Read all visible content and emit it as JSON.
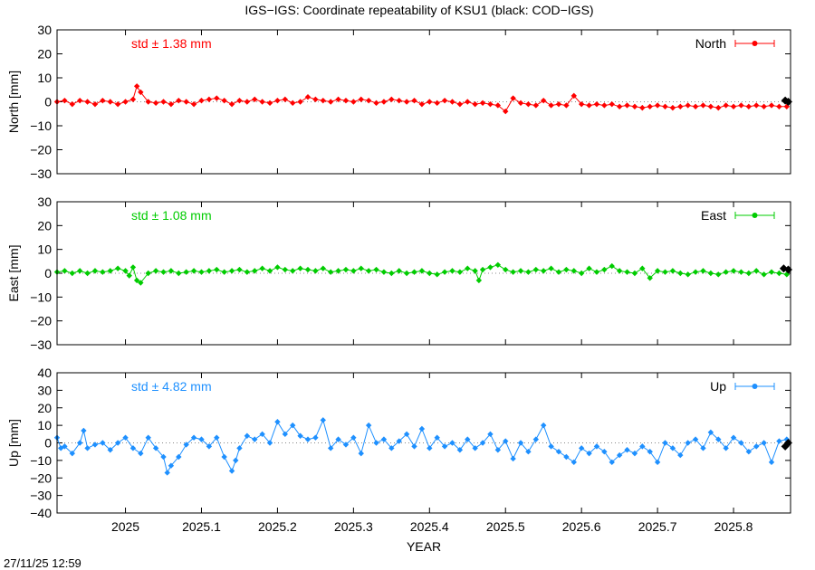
{
  "page": {
    "title": "IGS−IGS: Coordinate repeatability of KSU1 (black: COD−IGS)",
    "timestamp": "27/11/25 12:59",
    "xlabel": "YEAR"
  },
  "colors": {
    "north": "#ff0000",
    "east": "#00cc00",
    "up": "#1e90ff",
    "reference": "#000000",
    "zero_line": "#888888"
  },
  "chart_data": [
    {
      "type": "scatter",
      "id": "north",
      "legend": "North",
      "std_label": "std ± 1.38 mm",
      "ylabel": "North [mm]",
      "xlim": [
        2024.91,
        2025.875
      ],
      "ylim": [
        -30,
        30
      ],
      "yticks": [
        "30",
        "20",
        "10",
        "0",
        "−10",
        "−20",
        "−30"
      ],
      "ytick_values": [
        30,
        20,
        10,
        0,
        -10,
        -20,
        -30
      ],
      "grid": false,
      "legend_position": "top-right",
      "series": [
        {
          "name": "North",
          "color": "#ff0000",
          "x": [
            2024.91,
            2024.92,
            2024.93,
            2024.94,
            2024.95,
            2024.96,
            2024.97,
            2024.98,
            2024.99,
            2025.0,
            2025.01,
            2025.015,
            2025.02,
            2025.03,
            2025.04,
            2025.05,
            2025.06,
            2025.07,
            2025.08,
            2025.09,
            2025.1,
            2025.11,
            2025.12,
            2025.13,
            2025.14,
            2025.15,
            2025.16,
            2025.17,
            2025.18,
            2025.19,
            2025.2,
            2025.21,
            2025.22,
            2025.23,
            2025.24,
            2025.25,
            2025.26,
            2025.27,
            2025.28,
            2025.29,
            2025.3,
            2025.31,
            2025.32,
            2025.33,
            2025.34,
            2025.35,
            2025.36,
            2025.37,
            2025.38,
            2025.39,
            2025.4,
            2025.41,
            2025.42,
            2025.43,
            2025.44,
            2025.45,
            2025.46,
            2025.47,
            2025.48,
            2025.49,
            2025.5,
            2025.51,
            2025.52,
            2025.53,
            2025.54,
            2025.55,
            2025.56,
            2025.57,
            2025.58,
            2025.59,
            2025.6,
            2025.61,
            2025.62,
            2025.63,
            2025.64,
            2025.65,
            2025.66,
            2025.67,
            2025.68,
            2025.69,
            2025.7,
            2025.71,
            2025.72,
            2025.73,
            2025.74,
            2025.75,
            2025.76,
            2025.77,
            2025.78,
            2025.79,
            2025.8,
            2025.81,
            2025.82,
            2025.83,
            2025.84,
            2025.85,
            2025.86,
            2025.87
          ],
          "y": [
            0,
            0.5,
            -1,
            0.5,
            0,
            -1,
            0.5,
            0,
            -1,
            0,
            1,
            6.5,
            4,
            0,
            -0.5,
            0,
            -1,
            0.5,
            0,
            -1,
            0.5,
            1,
            1.5,
            0.5,
            -1,
            0.5,
            0,
            1,
            0,
            -0.5,
            0.5,
            1,
            -0.5,
            0,
            2,
            1,
            0.5,
            0,
            1,
            0.5,
            0,
            1,
            0.5,
            -0.5,
            0,
            1,
            0.5,
            0,
            0.5,
            -1,
            0,
            -0.5,
            0.5,
            0,
            -1,
            0,
            -1,
            -0.5,
            -1,
            -1.5,
            -4,
            1.5,
            -0.5,
            -1,
            -1.5,
            0.5,
            -1.5,
            -1,
            -1.5,
            2.5,
            -1,
            -1.5,
            -1,
            -1.5,
            -1,
            -2,
            -1.5,
            -2,
            -2.5,
            -2,
            -1.5,
            -2,
            -2.5,
            -2,
            -1.5,
            -2,
            -1.5,
            -2,
            -2.5,
            -1.5,
            -2,
            -1.5,
            -2,
            -1.5,
            -2,
            -1.5,
            -2,
            -2
          ]
        },
        {
          "name": "COD−IGS",
          "color": "#000000",
          "x": [
            2025.868,
            2025.872
          ],
          "y": [
            0.5,
            0
          ]
        }
      ]
    },
    {
      "type": "scatter",
      "id": "east",
      "legend": "East",
      "std_label": "std ± 1.08 mm",
      "ylabel": "East [mm]",
      "xlim": [
        2024.91,
        2025.875
      ],
      "ylim": [
        -30,
        30
      ],
      "yticks": [
        "30",
        "20",
        "10",
        "0",
        "−10",
        "−20",
        "−30"
      ],
      "ytick_values": [
        30,
        20,
        10,
        0,
        -10,
        -20,
        -30
      ],
      "grid": false,
      "legend_position": "top-right",
      "series": [
        {
          "name": "East",
          "color": "#00cc00",
          "x": [
            2024.91,
            2024.92,
            2024.93,
            2024.94,
            2024.95,
            2024.96,
            2024.97,
            2024.98,
            2024.99,
            2025.0,
            2025.005,
            2025.01,
            2025.015,
            2025.02,
            2025.03,
            2025.04,
            2025.05,
            2025.06,
            2025.07,
            2025.08,
            2025.09,
            2025.1,
            2025.11,
            2025.12,
            2025.13,
            2025.14,
            2025.15,
            2025.16,
            2025.17,
            2025.18,
            2025.19,
            2025.2,
            2025.21,
            2025.22,
            2025.23,
            2025.24,
            2025.25,
            2025.26,
            2025.27,
            2025.28,
            2025.29,
            2025.3,
            2025.31,
            2025.32,
            2025.33,
            2025.34,
            2025.35,
            2025.36,
            2025.37,
            2025.38,
            2025.39,
            2025.4,
            2025.41,
            2025.42,
            2025.43,
            2025.44,
            2025.45,
            2025.46,
            2025.465,
            2025.47,
            2025.48,
            2025.49,
            2025.5,
            2025.51,
            2025.52,
            2025.53,
            2025.54,
            2025.55,
            2025.56,
            2025.57,
            2025.58,
            2025.59,
            2025.6,
            2025.61,
            2025.62,
            2025.63,
            2025.64,
            2025.65,
            2025.66,
            2025.67,
            2025.68,
            2025.69,
            2025.7,
            2025.71,
            2025.72,
            2025.73,
            2025.74,
            2025.75,
            2025.76,
            2025.77,
            2025.78,
            2025.79,
            2025.8,
            2025.81,
            2025.82,
            2025.83,
            2025.84,
            2025.85,
            2025.86,
            2025.87
          ],
          "y": [
            0.5,
            1,
            0,
            1,
            0,
            1,
            0.5,
            1,
            2,
            1,
            -1,
            2.5,
            -3,
            -4,
            0,
            1,
            0.5,
            1,
            0,
            0.5,
            1,
            0.5,
            1,
            1.5,
            0.5,
            1,
            1.5,
            0.5,
            1,
            2,
            1,
            2.5,
            1.5,
            1,
            2,
            1.5,
            1,
            2,
            0.5,
            1,
            1.5,
            1,
            2,
            1,
            1.5,
            0.5,
            0,
            1,
            0,
            0.5,
            1,
            0,
            -0.5,
            0.5,
            1,
            0.5,
            2,
            1,
            -3,
            1.5,
            2.5,
            3.5,
            1.5,
            0.5,
            1,
            0.5,
            1.5,
            1,
            2,
            0.5,
            1.5,
            1,
            0,
            2,
            0.5,
            1.5,
            3,
            1,
            0.5,
            0,
            2,
            -2,
            1,
            0.5,
            1,
            0,
            -0.5,
            0.5,
            1,
            0,
            -0.5,
            0.5,
            1,
            0.5,
            0,
            1,
            -0.5,
            0.5,
            0,
            -0.5
          ]
        },
        {
          "name": "COD−IGS",
          "color": "#000000",
          "x": [
            2025.866,
            2025.872
          ],
          "y": [
            2,
            1.5
          ]
        }
      ]
    },
    {
      "type": "scatter",
      "id": "up",
      "legend": "Up",
      "std_label": "std ± 4.82 mm",
      "ylabel": "Up [mm]",
      "xlim": [
        2024.91,
        2025.875
      ],
      "ylim": [
        -40,
        40
      ],
      "yticks": [
        "40",
        "30",
        "20",
        "10",
        "0",
        "−10",
        "−20",
        "−30",
        "−40"
      ],
      "ytick_values": [
        40,
        30,
        20,
        10,
        0,
        -10,
        -20,
        -30,
        -40
      ],
      "grid": false,
      "legend_position": "top-right",
      "series": [
        {
          "name": "Up",
          "color": "#1e90ff",
          "x": [
            2024.91,
            2024.915,
            2024.92,
            2024.93,
            2024.94,
            2024.945,
            2024.95,
            2024.96,
            2024.97,
            2024.98,
            2024.99,
            2025.0,
            2025.01,
            2025.02,
            2025.03,
            2025.04,
            2025.05,
            2025.055,
            2025.06,
            2025.07,
            2025.08,
            2025.09,
            2025.1,
            2025.11,
            2025.12,
            2025.13,
            2025.14,
            2025.145,
            2025.15,
            2025.16,
            2025.17,
            2025.18,
            2025.19,
            2025.2,
            2025.21,
            2025.22,
            2025.23,
            2025.24,
            2025.25,
            2025.26,
            2025.27,
            2025.28,
            2025.29,
            2025.3,
            2025.31,
            2025.32,
            2025.33,
            2025.34,
            2025.35,
            2025.36,
            2025.37,
            2025.38,
            2025.39,
            2025.4,
            2025.41,
            2025.42,
            2025.43,
            2025.44,
            2025.45,
            2025.46,
            2025.47,
            2025.48,
            2025.49,
            2025.5,
            2025.51,
            2025.52,
            2025.53,
            2025.54,
            2025.55,
            2025.56,
            2025.57,
            2025.58,
            2025.59,
            2025.6,
            2025.61,
            2025.62,
            2025.63,
            2025.64,
            2025.65,
            2025.66,
            2025.67,
            2025.68,
            2025.69,
            2025.7,
            2025.71,
            2025.72,
            2025.73,
            2025.74,
            2025.75,
            2025.76,
            2025.77,
            2025.78,
            2025.79,
            2025.8,
            2025.81,
            2025.82,
            2025.83,
            2025.84,
            2025.85,
            2025.86,
            2025.87
          ],
          "y": [
            3,
            -3,
            -2,
            -6,
            0,
            7,
            -3,
            -1,
            0,
            -4,
            0,
            3,
            -3,
            -6,
            3,
            -3,
            -8,
            -17,
            -13,
            -8,
            -1,
            3,
            2,
            -2,
            3,
            -8,
            -16,
            -10,
            -3,
            4,
            2,
            5,
            0,
            12,
            5,
            10,
            4,
            2,
            3,
            13,
            -3,
            2,
            -1,
            3,
            -6,
            10,
            0,
            2,
            -3,
            1,
            5,
            -2,
            8,
            -3,
            3,
            -2,
            0,
            -4,
            2,
            -3,
            0,
            5,
            -4,
            1,
            -9,
            0,
            -5,
            2,
            10,
            -2,
            -5,
            -8,
            -11,
            -3,
            -6,
            -2,
            -5,
            -11,
            -7,
            -4,
            -6,
            -2,
            -5,
            -11,
            0,
            -3,
            -7,
            0,
            2,
            -3,
            6,
            2,
            -3,
            3,
            0,
            -5,
            -2,
            0,
            -11,
            1,
            2
          ]
        },
        {
          "name": "COD−IGS",
          "color": "#000000",
          "x": [
            2025.868,
            2025.872
          ],
          "y": [
            -2,
            0
          ]
        }
      ]
    }
  ]
}
